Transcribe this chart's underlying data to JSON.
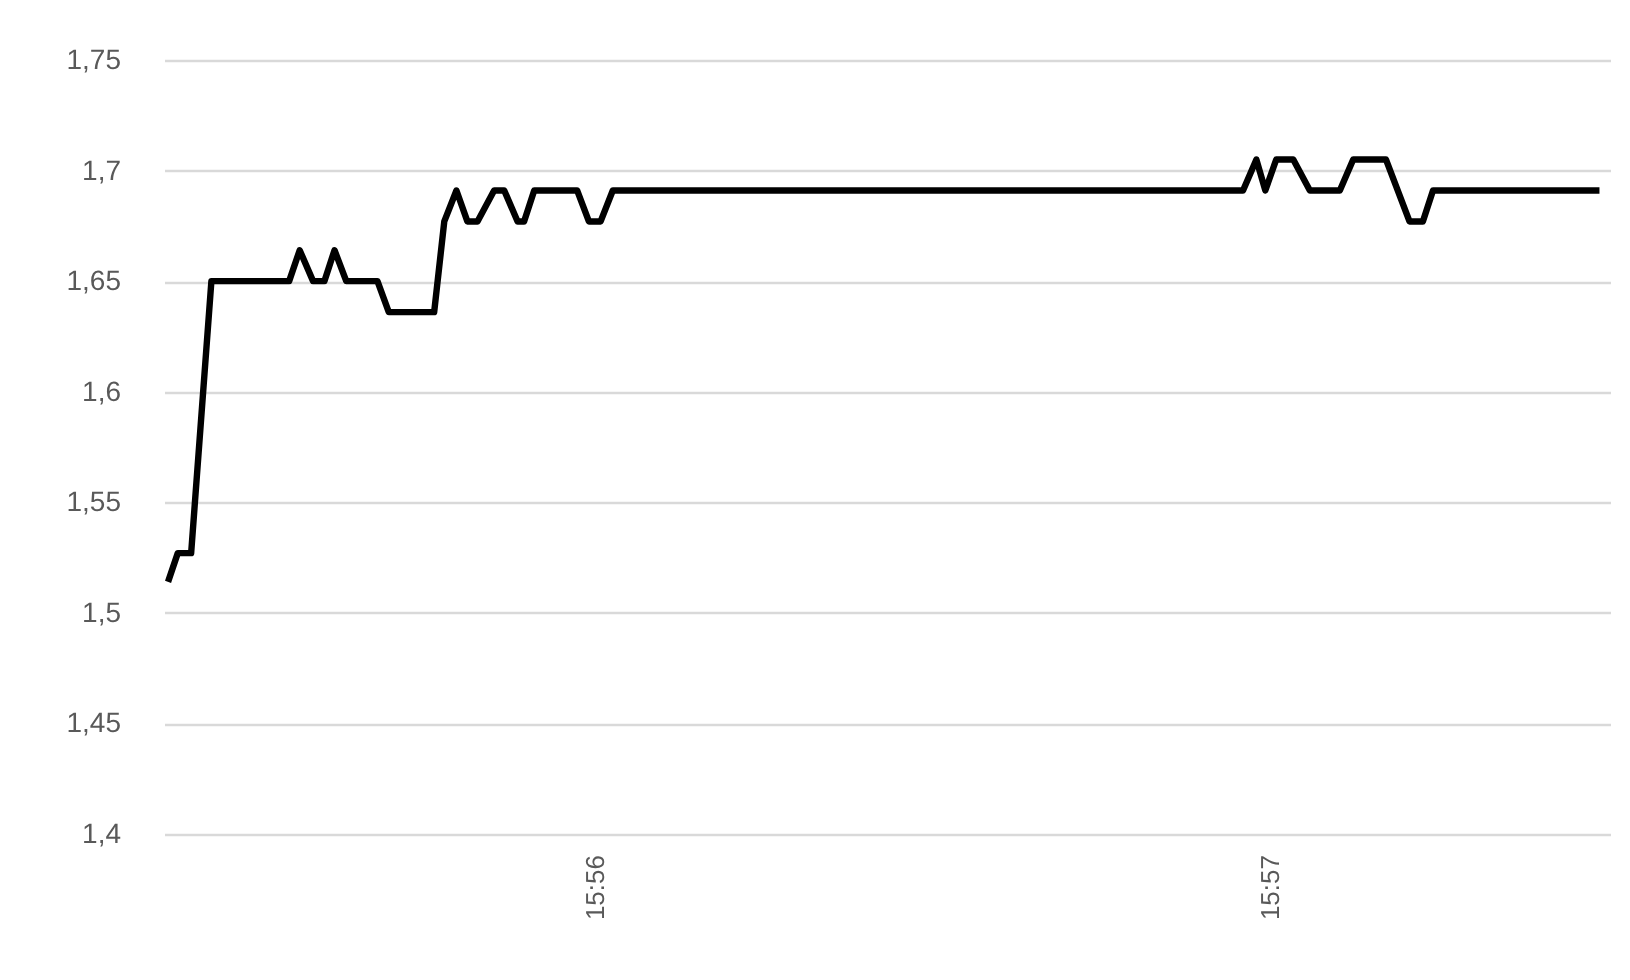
{
  "chart_data": {
    "type": "line",
    "x": [
      15.9228,
      15.92304,
      15.92337,
      15.92387,
      15.92579,
      15.92605,
      15.92638,
      15.92666,
      15.92691,
      15.9272,
      15.92797,
      15.92825,
      15.92937,
      15.92962,
      15.92992,
      15.93019,
      15.93044,
      15.93085,
      15.9311,
      15.93143,
      15.93159,
      15.93184,
      15.9329,
      15.93319,
      15.93348,
      15.93378,
      15.94934,
      15.94967,
      15.94989,
      15.95016,
      15.95058,
      15.95099,
      15.95173,
      15.95206,
      15.95287,
      15.95345,
      15.95378,
      15.95403,
      15.95814
    ],
    "series": [
      {
        "color": "#000000",
        "values": [
          1.514,
          1.527,
          1.527,
          1.65,
          1.65,
          1.664,
          1.65,
          1.65,
          1.664,
          1.65,
          1.65,
          1.636,
          1.636,
          1.677,
          1.691,
          1.677,
          1.677,
          1.691,
          1.691,
          1.677,
          1.677,
          1.691,
          1.691,
          1.677,
          1.677,
          1.691,
          1.691,
          1.705,
          1.691,
          1.705,
          1.705,
          1.691,
          1.691,
          1.705,
          1.705,
          1.677,
          1.677,
          1.691,
          1.691
        ]
      }
    ],
    "xlim": [
      15.9227,
      15.9584
    ],
    "xticks": [
      {
        "value": 15.933333,
        "label": "15:56"
      },
      {
        "value": 15.95,
        "label": "15:57"
      }
    ],
    "ylim": [
      1.4,
      1.75
    ],
    "yticks": [
      {
        "value": 1.4,
        "label": "1,4"
      },
      {
        "value": 1.45,
        "label": "1,45"
      },
      {
        "value": 1.5,
        "label": "1,5"
      },
      {
        "value": 1.55,
        "label": "1,55"
      },
      {
        "value": 1.6,
        "label": "1,6"
      },
      {
        "value": 1.65,
        "label": "1,65"
      },
      {
        "value": 1.7,
        "label": "1,7"
      },
      {
        "value": 1.75,
        "label": "1,75"
      }
    ],
    "grid": "y",
    "marker": "none",
    "line_style": "solid"
  }
}
